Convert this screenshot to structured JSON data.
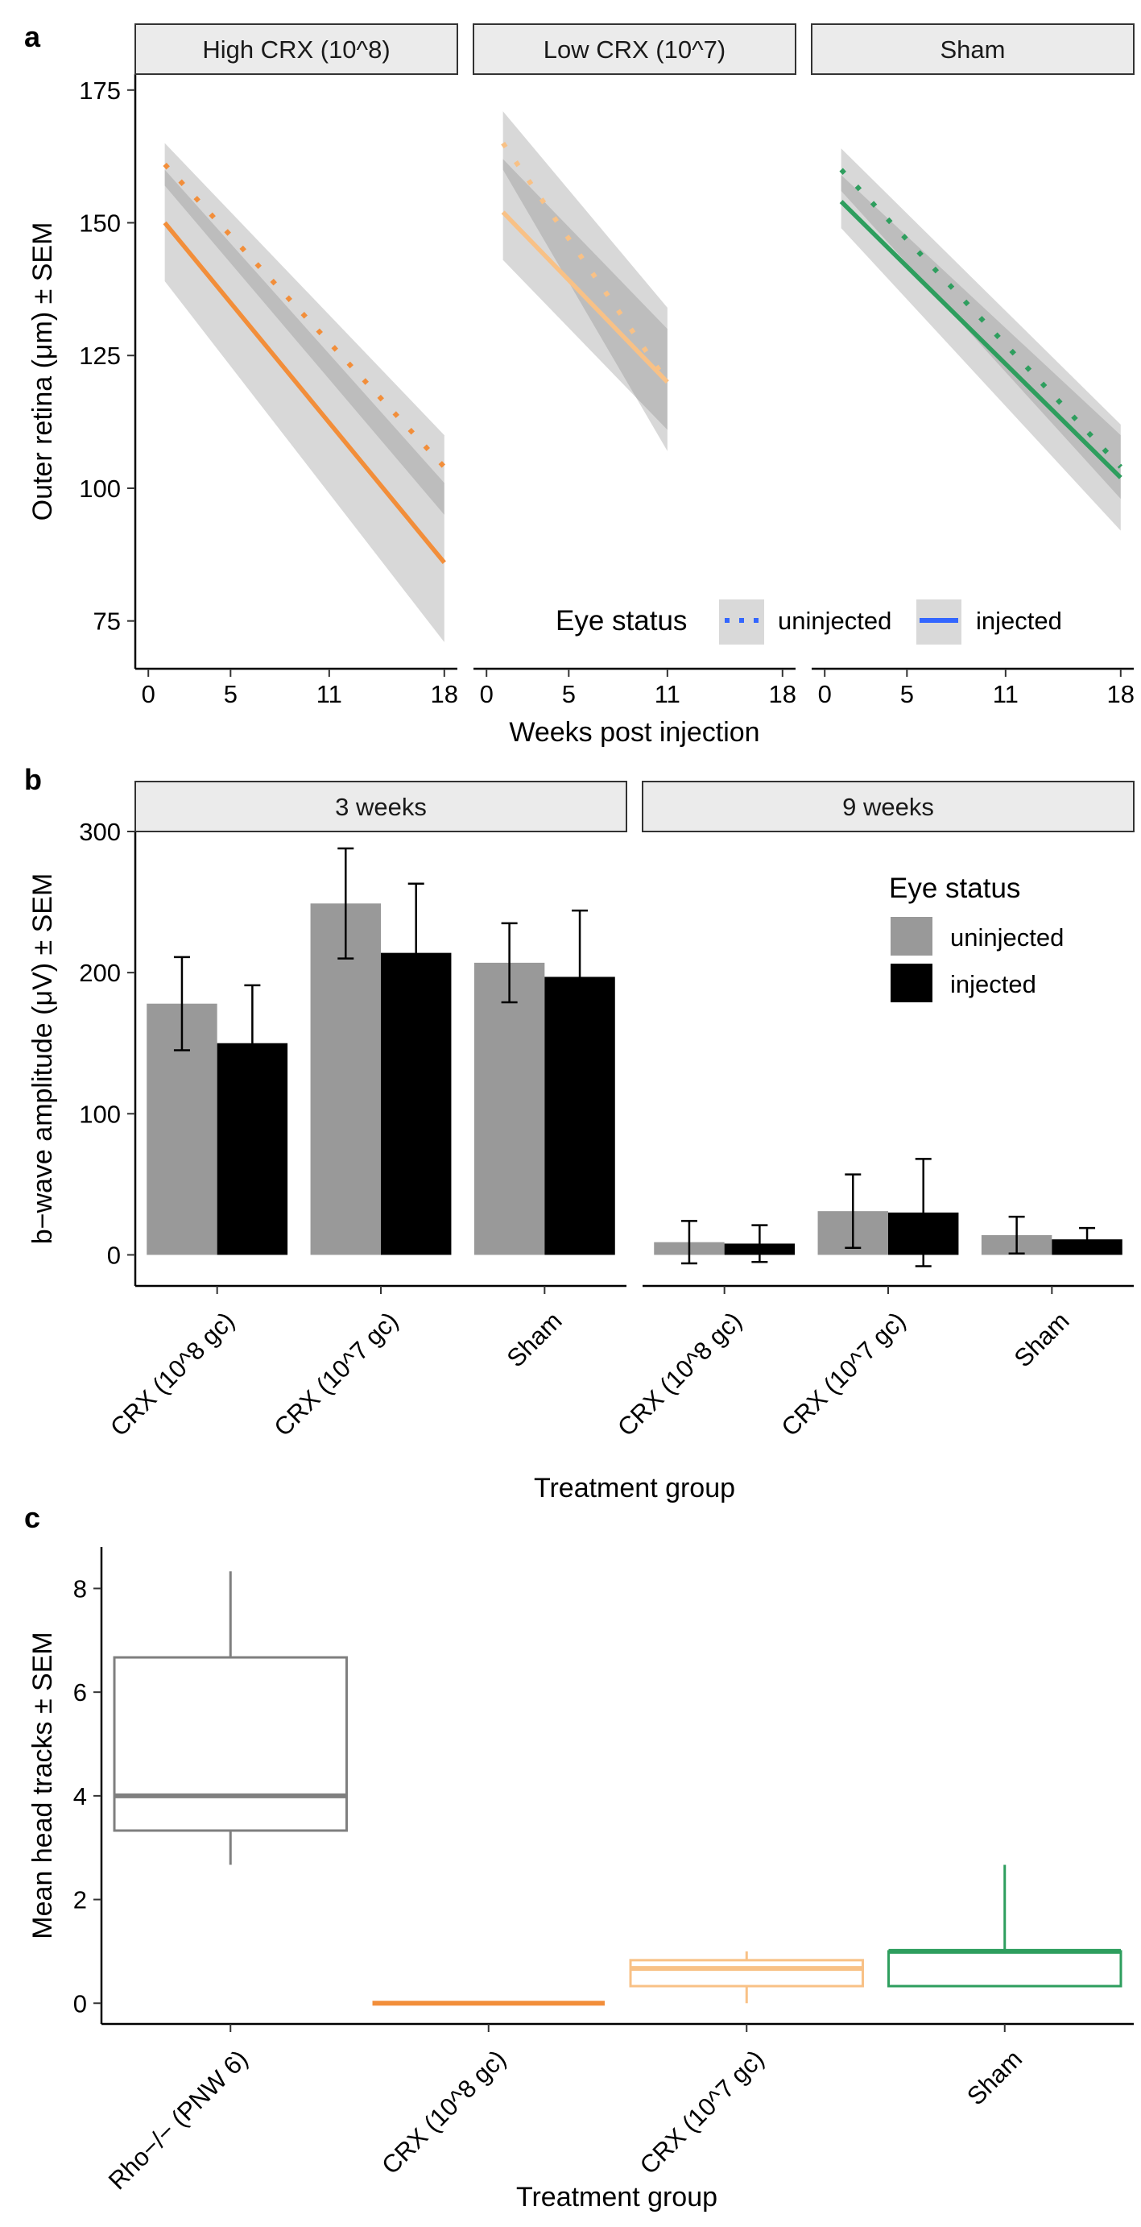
{
  "chart_data": [
    {
      "panel": "a",
      "type": "line",
      "facets": [
        "High CRX (10^8)",
        "Low CRX (10^7)",
        "Sham"
      ],
      "ylabel": "Outer retina (μm) ± SEM",
      "xlabel": "Weeks post injection",
      "xlim": [
        -0.5,
        18.5
      ],
      "ylim": [
        66,
        178
      ],
      "xticks": [
        0,
        5,
        11,
        18
      ],
      "yticks": [
        75,
        100,
        125,
        150,
        175
      ],
      "legend": {
        "title": "Eye status",
        "position": "bottom-right",
        "uninjected": "uninjected",
        "injected": "injected"
      },
      "colors": [
        "#F28E3A",
        "#F8C186",
        "#2E9E5E"
      ],
      "series": [
        {
          "facet": "High CRX (10^8)",
          "x": [
            1,
            18
          ],
          "uninjected": [
            161,
            104
          ],
          "uninjected_se_lo": [
            157,
            95
          ],
          "uninjected_se_hi": [
            165,
            110
          ],
          "injected": [
            150,
            86
          ],
          "injected_se_lo": [
            139,
            71
          ],
          "injected_se_hi": [
            160,
            101
          ]
        },
        {
          "facet": "Low CRX (10^7)",
          "x": [
            1,
            11
          ],
          "uninjected": [
            165,
            120
          ],
          "uninjected_se_lo": [
            160,
            107
          ],
          "uninjected_se_hi": [
            171,
            134
          ],
          "injected": [
            152,
            120
          ],
          "injected_se_lo": [
            143,
            111
          ],
          "injected_se_hi": [
            162,
            130
          ]
        },
        {
          "facet": "Sham",
          "x": [
            1,
            18
          ],
          "uninjected": [
            160,
            104
          ],
          "uninjected_se_lo": [
            156,
            98
          ],
          "uninjected_se_hi": [
            164,
            112
          ],
          "injected": [
            154,
            102
          ],
          "injected_se_lo": [
            149,
            92
          ],
          "injected_se_hi": [
            159,
            110
          ]
        }
      ]
    },
    {
      "panel": "b",
      "type": "bar",
      "facets": [
        "3 weeks",
        "9 weeks"
      ],
      "categories": [
        "CRX (10^8 gc)",
        "CRX (10^7 gc)",
        "Sham"
      ],
      "ylabel": "b−wave amplitude (μV) ± SEM",
      "xlabel": "Treatment group",
      "ylim": [
        -22,
        300
      ],
      "yticks": [
        0,
        100,
        200,
        300
      ],
      "legend": {
        "title": "Eye status",
        "position": "top-right",
        "uninjected": "uninjected",
        "injected": "injected"
      },
      "colors": {
        "uninjected": "#999999",
        "injected": "#000000"
      },
      "series": [
        {
          "facet": "3 weeks",
          "name": "uninjected",
          "values": [
            178,
            249,
            207
          ],
          "err": [
            33,
            39,
            28
          ]
        },
        {
          "facet": "3 weeks",
          "name": "injected",
          "values": [
            150,
            214,
            197
          ],
          "err": [
            41,
            49,
            47
          ]
        },
        {
          "facet": "9 weeks",
          "name": "uninjected",
          "values": [
            9,
            31,
            14
          ],
          "err": [
            15,
            26,
            13
          ]
        },
        {
          "facet": "9 weeks",
          "name": "injected",
          "values": [
            8,
            30,
            11
          ],
          "err": [
            13,
            38,
            8
          ]
        }
      ]
    },
    {
      "panel": "c",
      "type": "box",
      "categories": [
        "Rho−/− (PNW 6)",
        "CRX (10^8 gc)",
        "CRX (10^7 gc)",
        "Sham"
      ],
      "ylabel": "Mean head tracks ± SEM",
      "xlabel": "Treatment group",
      "ylim": [
        -0.4,
        8.8
      ],
      "yticks": [
        0,
        2,
        4,
        6,
        8
      ],
      "colors": [
        "#7F7F7F",
        "#F28E3A",
        "#F8C186",
        "#2E9E5E"
      ],
      "boxes": [
        {
          "min": 2.67,
          "q1": 3.33,
          "median": 4.0,
          "q3": 6.67,
          "max": 8.33
        },
        {
          "min": 0,
          "q1": 0,
          "median": 0,
          "q3": 0,
          "max": 0
        },
        {
          "min": 0,
          "q1": 0.33,
          "median": 0.67,
          "q3": 0.83,
          "max": 1.0
        },
        {
          "min": 0.33,
          "q1": 0.33,
          "median": 1.0,
          "q3": 1.0,
          "max": 2.67
        }
      ]
    }
  ],
  "panel_letters": [
    "a",
    "b",
    "c"
  ]
}
